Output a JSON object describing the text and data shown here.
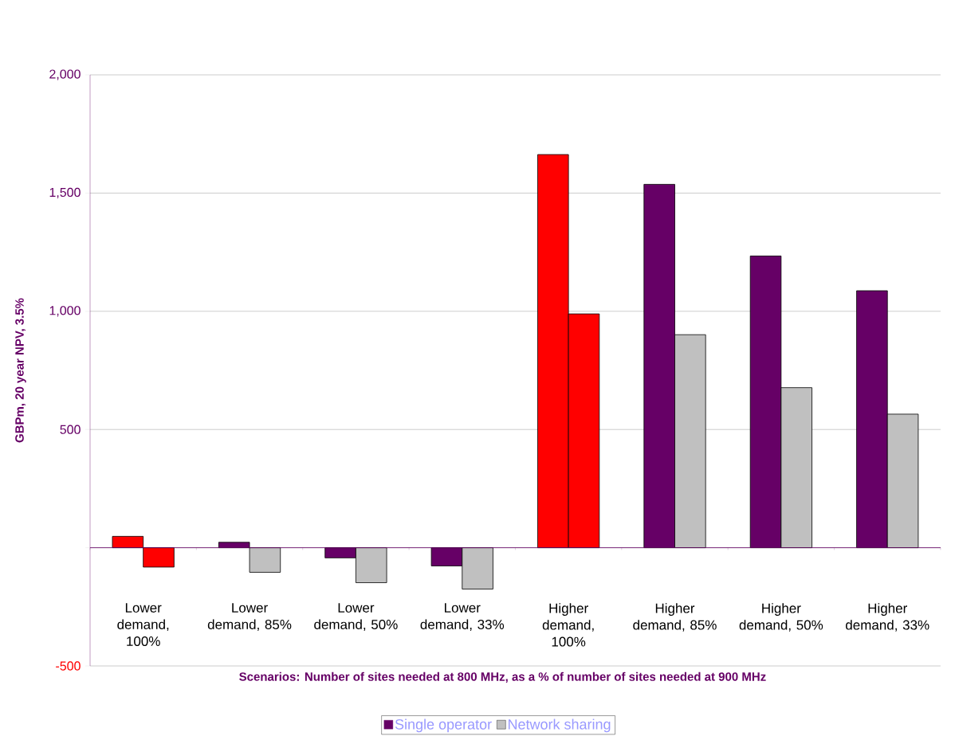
{
  "chart_data": {
    "type": "bar",
    "xlabel": "Scenarios: Number of sites needed at 800 MHz, as a % of number of sites needed at 900 MHz",
    "ylabel": "GBPm, 20 year NPV, 3.5%",
    "categories": [
      "Lower demand, 100%",
      "Lower demand, 85%",
      "Lower demand, 50%",
      "Lower demand, 33%",
      "Higher demand, 100%",
      "Higher demand, 85%",
      "Higher demand, 50%",
      "Higher demand, 33%"
    ],
    "series": [
      {
        "name": "Single operator",
        "color": "#660066",
        "colors": [
          "#ff0000",
          "#660066",
          "#660066",
          "#660066",
          "#ff0000",
          "#660066",
          "#660066",
          "#660066"
        ],
        "values": [
          48,
          23,
          -43,
          -77,
          1663,
          1537,
          1234,
          1087
        ]
      },
      {
        "name": "Network sharing",
        "color": "#c0c0c0",
        "colors": [
          "#ff0000",
          "#c0c0c0",
          "#c0c0c0",
          "#c0c0c0",
          "#ff0000",
          "#c0c0c0",
          "#c0c0c0",
          "#c0c0c0"
        ],
        "values": [
          -82,
          -104,
          -148,
          -175,
          989,
          901,
          677,
          565
        ]
      }
    ],
    "ylim": [
      -500,
      2000
    ],
    "yticks": [
      -500,
      {
        "value": 0,
        "label": null
      },
      500,
      {
        "value": 1000,
        "label": "1,000"
      },
      {
        "value": 1500,
        "label": "1,500"
      },
      {
        "value": 2000,
        "label": "2,000"
      }
    ],
    "ref_lines": [
      {
        "axis": "y",
        "value": 0,
        "color": "#660066"
      }
    ],
    "grid": "y",
    "legend": "bottom"
  }
}
